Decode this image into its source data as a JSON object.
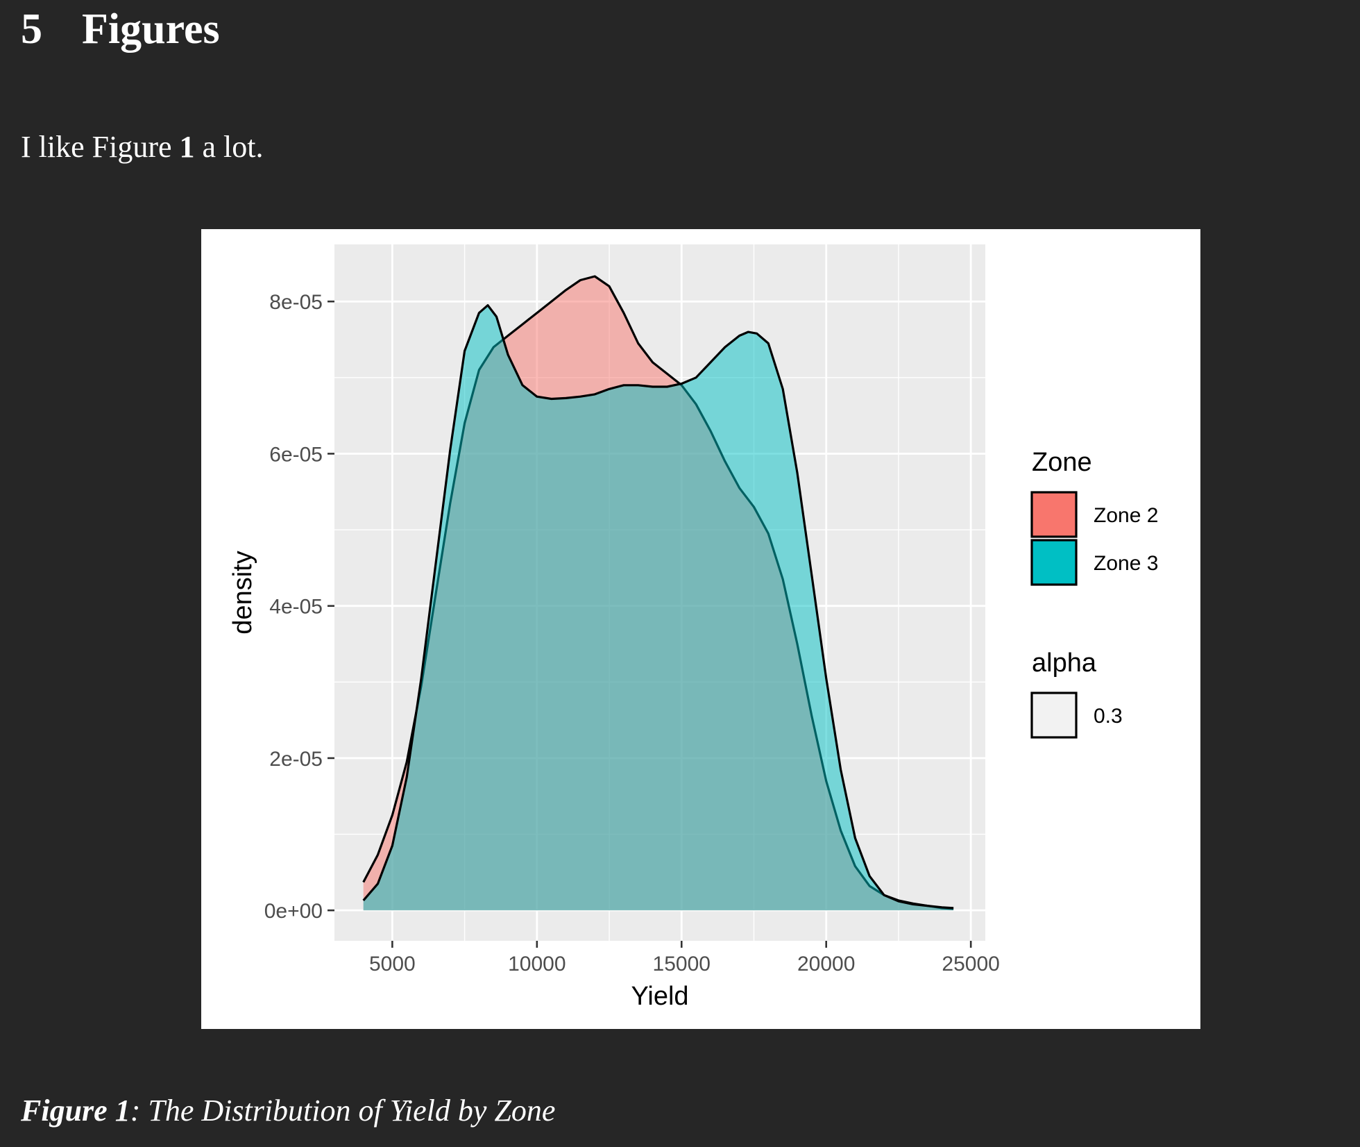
{
  "section": {
    "number": "5",
    "title": "Figures"
  },
  "paragraph": {
    "before": "I like Figure ",
    "ref": "1",
    "after": " a lot."
  },
  "caption": {
    "label": "Figure 1",
    "text": ": The Distribution of Yield by Zone"
  },
  "colors": {
    "page_bg": "#262626",
    "panel_bg": "#EBEBEB",
    "grid": "#FFFFFF",
    "zone2": "#F8766D",
    "zone3": "#00BFC4",
    "alpha_key": "#F2F2F2"
  },
  "chart_data": {
    "type": "area",
    "subtype": "density",
    "xlabel": "Yield",
    "ylabel": "density",
    "xlim": [
      3000,
      25500
    ],
    "ylim": [
      -4e-06,
      8.75e-05
    ],
    "x_ticks": [
      5000,
      10000,
      15000,
      20000,
      25000
    ],
    "x_tick_labels": [
      "5000",
      "10000",
      "15000",
      "20000",
      "25000"
    ],
    "y_ticks": [
      0,
      2e-05,
      4e-05,
      6e-05,
      8e-05
    ],
    "y_tick_labels": [
      "0e+00",
      "2e-05",
      "4e-05",
      "6e-05",
      "8e-05"
    ],
    "grid": true,
    "fill_alpha": 0.5,
    "legend_position": "right",
    "legend": {
      "fill_title": "Zone",
      "alpha_title": "alpha",
      "alpha_label": "0.3"
    },
    "series": [
      {
        "name": "Zone 2",
        "color": "#F8766D",
        "x": [
          4000,
          4500,
          5000,
          5500,
          6000,
          6500,
          7000,
          7500,
          8000,
          8500,
          9000,
          9500,
          10000,
          10500,
          11000,
          11500,
          12000,
          12500,
          13000,
          13500,
          14000,
          14500,
          15000,
          15500,
          16000,
          16500,
          17000,
          17500,
          18000,
          18500,
          19000,
          19500,
          20000,
          20500,
          21000,
          21500,
          22000,
          22500,
          23000,
          23500,
          24000,
          24400
        ],
        "y": [
          3.7e-06,
          7.3e-06,
          1.25e-05,
          1.95e-05,
          2.95e-05,
          4.15e-05,
          5.35e-05,
          6.4e-05,
          7.1e-05,
          7.4e-05,
          7.55e-05,
          7.7e-05,
          7.85e-05,
          8e-05,
          8.15e-05,
          8.28e-05,
          8.33e-05,
          8.2e-05,
          7.85e-05,
          7.45e-05,
          7.2e-05,
          7.05e-05,
          6.9e-05,
          6.65e-05,
          6.3e-05,
          5.9e-05,
          5.55e-05,
          5.3e-05,
          4.95e-05,
          4.35e-05,
          3.5e-05,
          2.55e-05,
          1.7e-05,
          1.05e-05,
          5.8e-06,
          3.2e-06,
          2e-06,
          1.3e-06,
          9e-07,
          6e-07,
          3e-07,
          2e-07
        ]
      },
      {
        "name": "Zone 3",
        "color": "#00BFC4",
        "x": [
          4000,
          4500,
          5000,
          5500,
          6000,
          6500,
          7000,
          7500,
          8000,
          8300,
          8600,
          9000,
          9500,
          10000,
          10500,
          11000,
          11500,
          12000,
          12500,
          13000,
          13500,
          14000,
          14500,
          15000,
          15500,
          16000,
          16500,
          17000,
          17300,
          17600,
          18000,
          18500,
          19000,
          19500,
          20000,
          20500,
          21000,
          21500,
          22000,
          22500,
          23000,
          23500,
          24000,
          24400
        ],
        "y": [
          1.3e-06,
          3.5e-06,
          8.5e-06,
          1.75e-05,
          3.05e-05,
          4.55e-05,
          6.05e-05,
          7.35e-05,
          7.85e-05,
          7.95e-05,
          7.8e-05,
          7.3e-05,
          6.9e-05,
          6.75e-05,
          6.72e-05,
          6.73e-05,
          6.75e-05,
          6.78e-05,
          6.85e-05,
          6.9e-05,
          6.9e-05,
          6.88e-05,
          6.88e-05,
          6.92e-05,
          7e-05,
          7.2e-05,
          7.4e-05,
          7.55e-05,
          7.6e-05,
          7.58e-05,
          7.45e-05,
          6.85e-05,
          5.75e-05,
          4.4e-05,
          3.05e-05,
          1.85e-05,
          9.5e-06,
          4.5e-06,
          2e-06,
          1.2e-06,
          8e-07,
          6e-07,
          4e-07,
          3e-07
        ]
      }
    ]
  }
}
